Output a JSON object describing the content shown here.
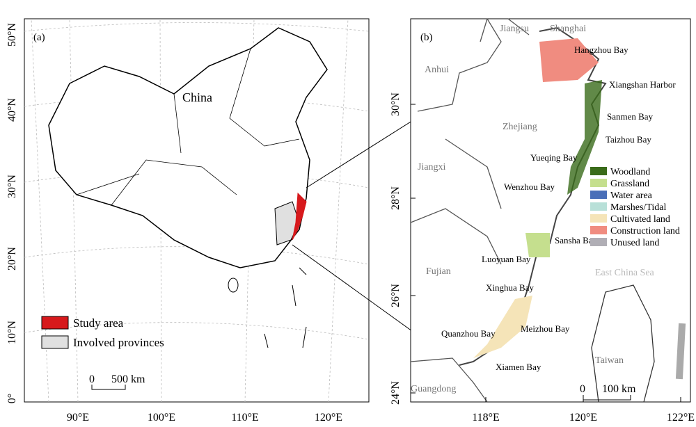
{
  "panel_a": {
    "label": "(a)",
    "country": "China",
    "lat_labels": [
      "50°N",
      "40°N",
      "30°N",
      "20°N",
      "10°N",
      "0°"
    ],
    "lon_labels": [
      "90°E",
      "100°E",
      "110°E",
      "120°E"
    ],
    "legend": [
      {
        "name": "Study area",
        "color": "#d7191c"
      },
      {
        "name": "Involved provinces",
        "color": "#e0e0e0"
      }
    ],
    "scale": [
      "0",
      "500 km"
    ]
  },
  "panel_b": {
    "label": "(b)",
    "lat_labels": [
      "30°N",
      "28°N",
      "26°N",
      "24°N"
    ],
    "lon_labels": [
      "118°E",
      "120°E",
      "122°E"
    ],
    "places": [
      "Jiangsu",
      "Shanghai",
      "Anhui",
      "Zhejiang",
      "Jiangxi",
      "Fujian",
      "Guangdong",
      "Taiwan"
    ],
    "sea": "East China Sea",
    "bays": [
      "Hangzhou Bay",
      "Xiangshan Harbor",
      "Sanmen Bay",
      "Taizhou Bay",
      "Yueqing Bay",
      "Wenzhou Bay",
      "Sansha Bay",
      "Luoyuan Bay",
      "Xinghua Bay",
      "Meizhou Bay",
      "Quanzhou Bay",
      "Xiamen Bay"
    ],
    "legend": [
      {
        "name": "Woodland",
        "color": "#3a6b1a"
      },
      {
        "name": "Grassland",
        "color": "#c5df8e"
      },
      {
        "name": "Water area",
        "color": "#4a6fb8"
      },
      {
        "name": "Marshes/Tidal",
        "color": "#b8e0d8"
      },
      {
        "name": "Cultivated land",
        "color": "#f5e4b8"
      },
      {
        "name": "Construction land",
        "color": "#f08c80"
      },
      {
        "name": "Unused land",
        "color": "#b0aeb5"
      }
    ],
    "scale": [
      "0",
      "100 km"
    ]
  }
}
